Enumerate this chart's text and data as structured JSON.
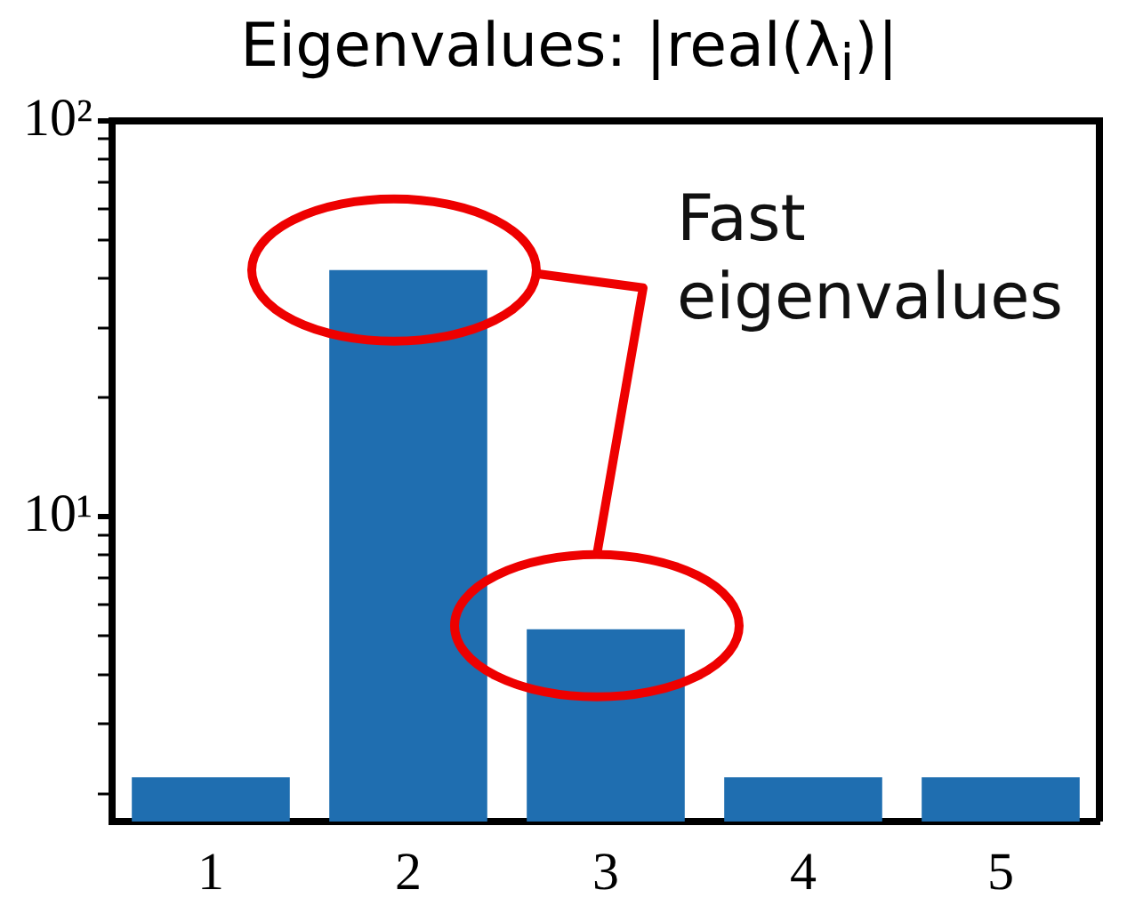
{
  "chart_data": {
    "type": "bar",
    "title": "Eigenvalues: |real(λ$_{i}$)|",
    "categories": [
      "1",
      "2",
      "3",
      "4",
      "5"
    ],
    "values": [
      2.2,
      42,
      5.2,
      2.2,
      2.2
    ],
    "color": "#1f6eb0",
    "log": true,
    "ylim": [
      1.7,
      100
    ],
    "yticks": [
      {
        "value": 2,
        "label": null
      },
      {
        "value": 3,
        "label": null
      },
      {
        "value": 4,
        "label": null
      },
      {
        "value": 5,
        "label": null
      },
      {
        "value": 6,
        "label": null
      },
      {
        "value": 7,
        "label": null
      },
      {
        "value": 8,
        "label": null
      },
      {
        "value": 9,
        "label": null
      },
      {
        "value": 10,
        "label": "10¹"
      },
      {
        "value": 20,
        "label": null
      },
      {
        "value": 30,
        "label": null
      },
      {
        "value": 40,
        "label": null
      },
      {
        "value": 50,
        "label": null
      },
      {
        "value": 60,
        "label": null
      },
      {
        "value": 70,
        "label": null
      },
      {
        "value": 80,
        "label": null
      },
      {
        "value": 90,
        "label": null
      },
      {
        "value": 100,
        "label": "10²"
      }
    ],
    "grid": false,
    "legend": false,
    "annotations": [
      "Fast eigenvalues"
    ]
  }
}
